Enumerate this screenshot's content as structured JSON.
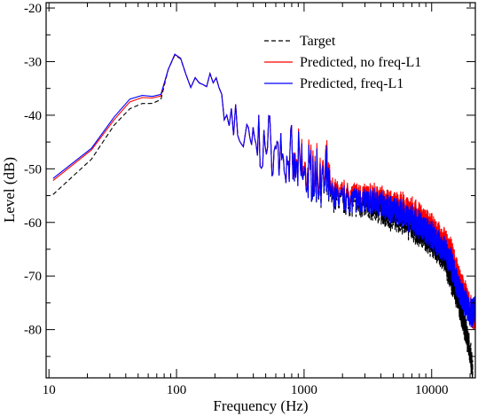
{
  "chart_data": {
    "type": "line",
    "title": "",
    "xlabel": "Frequency (Hz)",
    "ylabel": "Level (dB)",
    "xscale": "log",
    "xlim": [
      9.5,
      22000
    ],
    "ylim": [
      -89,
      -19
    ],
    "xticks": [
      {
        "value": 10,
        "label": "10"
      },
      {
        "value": 100,
        "label": "100"
      },
      {
        "value": 1000,
        "label": "1000"
      },
      {
        "value": 10000,
        "label": "10000"
      }
    ],
    "yticks": [
      {
        "value": -20,
        "label": "-20"
      },
      {
        "value": -30,
        "label": "-30"
      },
      {
        "value": -40,
        "label": "-40"
      },
      {
        "value": -50,
        "label": "-50"
      },
      {
        "value": -60,
        "label": "-60"
      },
      {
        "value": -70,
        "label": "-70"
      },
      {
        "value": -80,
        "label": "-80"
      }
    ],
    "legend_position": "top-right",
    "grid": false,
    "series": [
      {
        "name": "Target",
        "color": "#000000",
        "dash": "dashed",
        "points": [
          [
            11,
            -54.8
          ],
          [
            22,
            -48
          ],
          [
            32,
            -42
          ],
          [
            43,
            -38.8
          ],
          [
            54,
            -37.8
          ],
          [
            65,
            -37.8
          ],
          [
            75,
            -37.3
          ],
          [
            86,
            -31.5
          ],
          [
            97,
            -28.8
          ],
          [
            108,
            -29.5
          ],
          [
            119,
            -32.5
          ],
          [
            130,
            -35
          ],
          [
            140,
            -33
          ],
          [
            151,
            -34
          ],
          [
            162,
            -34.3
          ],
          [
            173,
            -34.7
          ],
          [
            184,
            -32
          ],
          [
            194,
            -34
          ],
          [
            205,
            -33
          ],
          [
            216,
            -35
          ],
          [
            226,
            -36
          ],
          [
            237,
            -40
          ],
          [
            250,
            -42
          ],
          [
            300,
            -45
          ],
          [
            400,
            -47
          ],
          [
            600,
            -49
          ],
          [
            800,
            -51
          ],
          [
            1000,
            -53
          ],
          [
            1500,
            -55
          ],
          [
            2000,
            -56
          ],
          [
            3000,
            -57
          ],
          [
            4000,
            -58
          ],
          [
            5000,
            -59
          ],
          [
            6000,
            -60
          ],
          [
            8000,
            -62
          ],
          [
            10000,
            -64
          ],
          [
            12000,
            -66
          ],
          [
            14000,
            -70
          ],
          [
            16000,
            -74
          ],
          [
            18000,
            -79
          ],
          [
            20000,
            -84
          ],
          [
            21000,
            -88
          ]
        ]
      },
      {
        "name": "Predicted, no freq-L1",
        "color": "#ff0000",
        "dash": "solid",
        "points": [
          [
            11,
            -52.2
          ],
          [
            22,
            -46.3
          ],
          [
            32,
            -41
          ],
          [
            43,
            -37.5
          ],
          [
            54,
            -36.7
          ],
          [
            65,
            -36.8
          ],
          [
            75,
            -36.6
          ],
          [
            86,
            -31.5
          ],
          [
            97,
            -28.7
          ],
          [
            108,
            -29.4
          ],
          [
            119,
            -32.5
          ],
          [
            130,
            -35
          ],
          [
            140,
            -33
          ],
          [
            151,
            -34
          ],
          [
            162,
            -34.3
          ],
          [
            173,
            -34.7
          ],
          [
            184,
            -32
          ],
          [
            194,
            -34
          ],
          [
            205,
            -33
          ],
          [
            216,
            -35
          ],
          [
            226,
            -36
          ],
          [
            237,
            -40
          ],
          [
            250,
            -42
          ],
          [
            300,
            -45
          ],
          [
            400,
            -47
          ],
          [
            600,
            -49
          ],
          [
            800,
            -51
          ],
          [
            1000,
            -52
          ],
          [
            1500,
            -53.5
          ],
          [
            2000,
            -54.5
          ],
          [
            3000,
            -55
          ],
          [
            4000,
            -55.5
          ],
          [
            5000,
            -56.5
          ],
          [
            6000,
            -57
          ],
          [
            8000,
            -59
          ],
          [
            10000,
            -61
          ],
          [
            12000,
            -63
          ],
          [
            14000,
            -65
          ],
          [
            16000,
            -70
          ],
          [
            18000,
            -73
          ],
          [
            20000,
            -76
          ],
          [
            22000,
            -78
          ]
        ]
      },
      {
        "name": "Predicted, freq-L1",
        "color": "#0000ff",
        "dash": "solid",
        "points": [
          [
            11,
            -51.8
          ],
          [
            22,
            -46
          ],
          [
            32,
            -40.5
          ],
          [
            43,
            -37
          ],
          [
            54,
            -36.3
          ],
          [
            65,
            -36.5
          ],
          [
            75,
            -36.3
          ],
          [
            86,
            -31.5
          ],
          [
            97,
            -28.6
          ],
          [
            108,
            -29.4
          ],
          [
            119,
            -32.5
          ],
          [
            130,
            -35
          ],
          [
            140,
            -33
          ],
          [
            151,
            -34
          ],
          [
            162,
            -34.3
          ],
          [
            173,
            -34.7
          ],
          [
            184,
            -32
          ],
          [
            194,
            -34
          ],
          [
            205,
            -33
          ],
          [
            216,
            -35
          ],
          [
            226,
            -36
          ],
          [
            237,
            -40
          ],
          [
            250,
            -42
          ],
          [
            300,
            -45
          ],
          [
            400,
            -47
          ],
          [
            600,
            -49
          ],
          [
            800,
            -51
          ],
          [
            1000,
            -53
          ],
          [
            1500,
            -54.5
          ],
          [
            2000,
            -55.5
          ],
          [
            3000,
            -56
          ],
          [
            4000,
            -56.5
          ],
          [
            5000,
            -57.5
          ],
          [
            6000,
            -58.5
          ],
          [
            8000,
            -60.5
          ],
          [
            10000,
            -62.5
          ],
          [
            12000,
            -64.5
          ],
          [
            14000,
            -67
          ],
          [
            16000,
            -72
          ],
          [
            18000,
            -74.5
          ],
          [
            20000,
            -77
          ],
          [
            22000,
            -76
          ]
        ]
      }
    ]
  }
}
